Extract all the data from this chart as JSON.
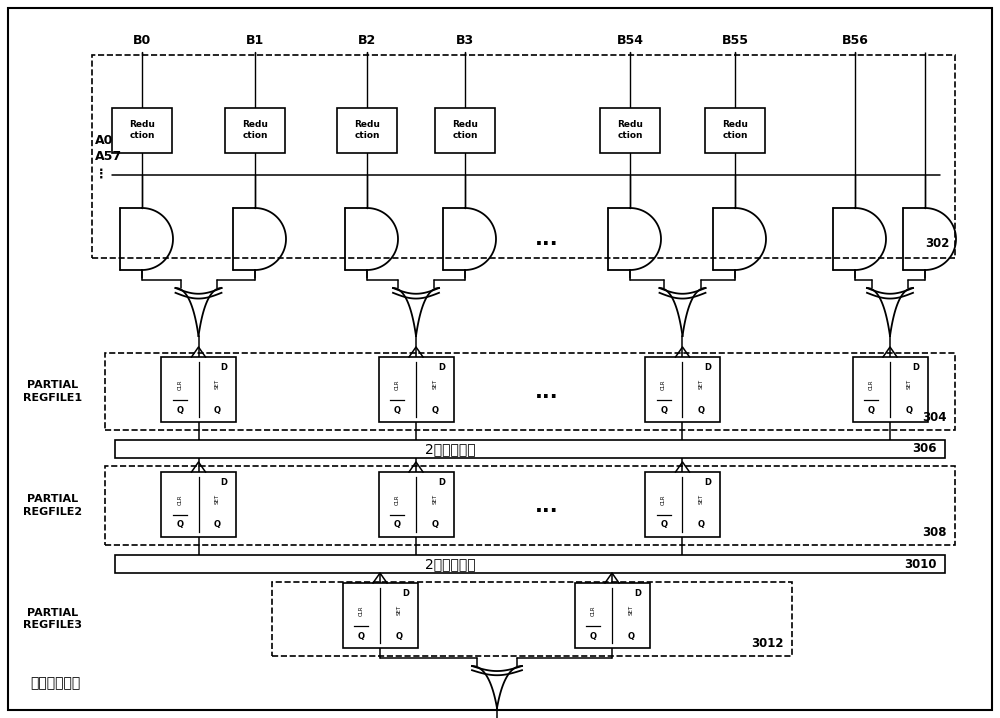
{
  "title": "模乘操作框图",
  "bg_color": "#ffffff",
  "b_labels": [
    "B0",
    "B1",
    "B2",
    "B3",
    "B54",
    "B55",
    "B56"
  ],
  "a_label": "A0\nA57\n⋮",
  "partial1": "PARTIAL\nREGFILE1",
  "partial2": "PARTIAL\nREGFILE2",
  "partial3": "PARTIAL\nREGFILE3",
  "reduction_label": "Redu\nction",
  "xor_chain_label": "2级异或树链",
  "label_302": "302",
  "label_304": "304",
  "label_306": "306",
  "label_308": "308",
  "label_3010": "3010",
  "label_3012": "3012",
  "fig_w": 10.0,
  "fig_h": 7.18,
  "dpi": 100
}
